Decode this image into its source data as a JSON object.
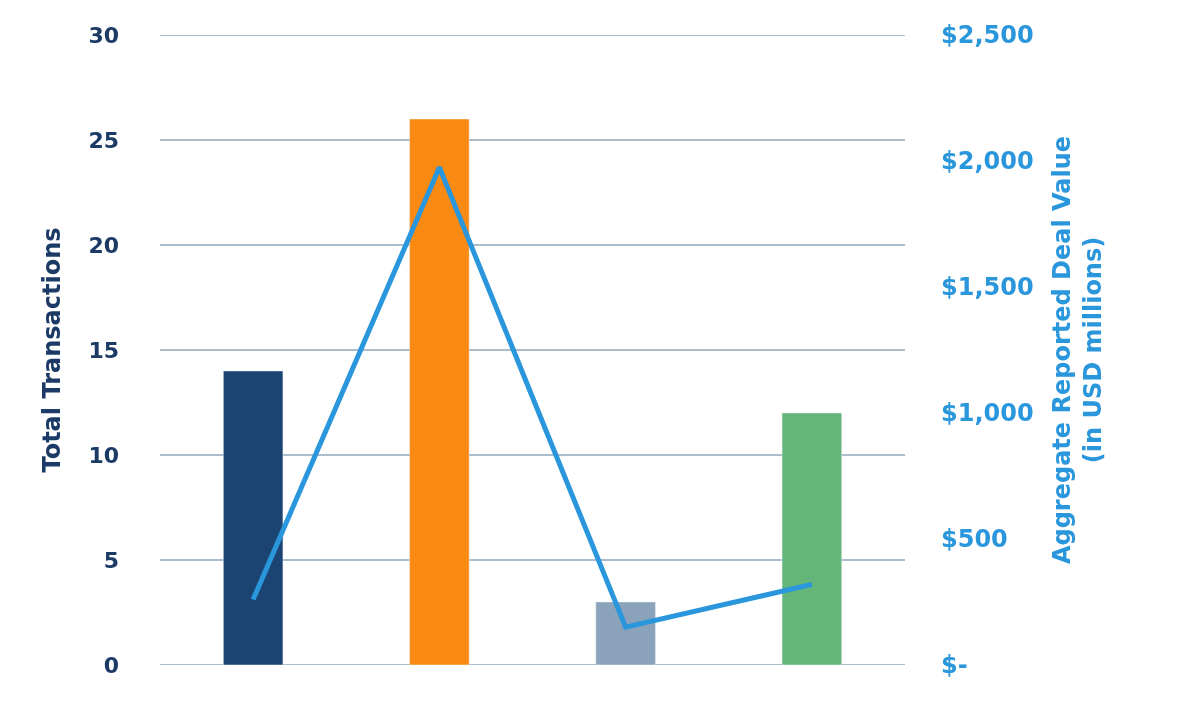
{
  "chart_data": {
    "type": "bar",
    "categories": [
      null,
      null,
      null,
      null
    ],
    "ylabel": "Total Transactions",
    "y2label": "Aggregate Reported Deal Value\n(in USD millions)",
    "series": [
      {
        "colors": [
          "#1b4472",
          "#fb8a12",
          "#8aa3bb",
          "#63b57a"
        ],
        "values": [
          14,
          26,
          3,
          12
        ]
      },
      {
        "type": "line",
        "axis": "y2",
        "color": "#2a96dc",
        "values": [
          260,
          1975,
          150,
          320
        ]
      }
    ],
    "ylim": [
      0,
      30
    ],
    "yticks": [
      0,
      5,
      10,
      15,
      20,
      25,
      30
    ],
    "y2lim": [
      0,
      2500
    ],
    "y2ticks": [
      {
        "value": 0,
        "label": "$-"
      },
      {
        "value": 500,
        "label": "$500"
      },
      {
        "value": 1000,
        "label": "$1,000"
      },
      {
        "value": 1500,
        "label": "$1,500"
      },
      {
        "value": 2000,
        "label": "$2,000"
      },
      {
        "value": 2500,
        "label": "$2,500"
      }
    ],
    "grid": "y",
    "marker": "none",
    "line_style": "solid"
  }
}
